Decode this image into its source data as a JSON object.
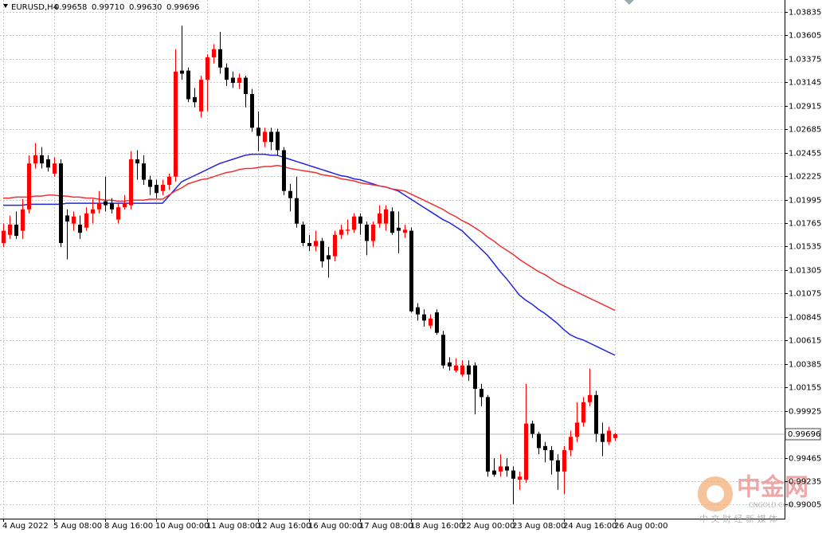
{
  "chart_data": {
    "type": "candlestick",
    "title": "EURUSD,H4",
    "header_values": [
      "0.99658",
      "0.99710",
      "0.99630",
      "0.99696"
    ],
    "categories": [
      "4 Aug 2022",
      null,
      null,
      null,
      null,
      null,
      null,
      null,
      "5 Aug 08:00",
      null,
      null,
      null,
      null,
      null,
      null,
      null,
      "8 Aug 16:00",
      null,
      null,
      null,
      null,
      null,
      null,
      null,
      "10 Aug 00:00",
      null,
      null,
      null,
      null,
      null,
      null,
      null,
      "11 Aug 08:00",
      null,
      null,
      null,
      null,
      null,
      null,
      null,
      "12 Aug 16:00",
      null,
      null,
      null,
      null,
      null,
      null,
      null,
      "16 Aug 00:00",
      null,
      null,
      null,
      null,
      null,
      null,
      null,
      "17 Aug 08:00",
      null,
      null,
      null,
      null,
      null,
      null,
      null,
      "18 Aug 16:00",
      null,
      null,
      null,
      null,
      null,
      null,
      null,
      "22 Aug 00:00",
      null,
      null,
      null,
      null,
      null,
      null,
      null,
      "23 Aug 08:00",
      null,
      null,
      null,
      null,
      null,
      null,
      null,
      "24 Aug 16:00",
      null,
      null,
      null,
      null,
      null,
      null,
      null,
      "26 Aug 00:00"
    ],
    "open": [
      1.0157,
      1.0165,
      1.0175,
      1.0169,
      1.019,
      1.0235,
      1.0243,
      1.0239,
      1.0225,
      1.0235,
      1.0184,
      1.0176,
      1.0175,
      1.0172,
      1.0186,
      1.019,
      1.0198,
      1.0196,
      1.018,
      1.0192,
      1.0194,
      1.0239,
      1.0235,
      1.0219,
      1.0214,
      1.0208,
      1.0214,
      1.0222,
      1.0326,
      1.0326,
      1.03,
      1.0286,
      1.0317,
      1.0339,
      1.0347,
      1.0329,
      1.0319,
      1.0314,
      1.0319,
      1.0303,
      1.027,
      1.0256,
      1.0266,
      1.0266,
      1.0248,
      1.0208,
      1.0201,
      1.0175,
      1.0157,
      1.0154,
      1.0159,
      1.0145,
      1.0144,
      1.0165,
      1.0169,
      1.017,
      1.0183,
      1.0175,
      1.0159,
      1.0176,
      1.0176,
      1.0188,
      1.0172,
      1.0167,
      1.0169,
      1.0094,
      1.0087,
      1.0076,
      1.0089,
      1.0067,
      1.004,
      1.0032,
      1.0028,
      1.0037,
      1.0037,
      1.0014,
      1.0006,
      0.9934,
      0.9933,
      0.9938,
      0.9934,
      0.9925,
      0.9925,
      0.998,
      0.997,
      0.9958,
      0.9954,
      0.9944,
      0.9933,
      0.9954,
      0.9967,
      0.9981,
      1.0001,
      1.0008,
      0.997,
      0.9962,
      0.99658
    ],
    "high": [
      1.0176,
      1.0184,
      1.0188,
      1.02,
      1.0243,
      1.0255,
      1.0251,
      1.0243,
      1.0241,
      1.0239,
      1.019,
      1.0188,
      1.0184,
      1.0192,
      1.02,
      1.0208,
      1.0222,
      1.0201,
      1.0196,
      1.0204,
      1.0247,
      1.0248,
      1.0243,
      1.0223,
      1.0219,
      1.0219,
      1.0225,
      1.0347,
      1.037,
      1.0329,
      1.0309,
      1.0321,
      1.0342,
      1.0352,
      1.0364,
      1.0333,
      1.0325,
      1.0323,
      1.0321,
      1.0308,
      1.0286,
      1.027,
      1.027,
      1.0269,
      1.0251,
      1.0215,
      1.0222,
      1.0178,
      1.0165,
      1.0169,
      1.0162,
      1.0153,
      1.0169,
      1.0175,
      1.018,
      1.0186,
      1.0186,
      1.0178,
      1.0178,
      1.0194,
      1.0194,
      1.0192,
      1.0188,
      1.0175,
      1.0172,
      1.0098,
      1.0092,
      1.0087,
      1.0092,
      1.0071,
      1.0045,
      1.0044,
      1.0042,
      1.0042,
      1.004,
      1.0019,
      1.0008,
      0.9946,
      0.995,
      0.9946,
      0.9938,
      0.9933,
      1.0019,
      0.9983,
      0.9972,
      0.9962,
      0.9958,
      0.995,
      0.9958,
      0.9973,
      1.0001,
      1.0006,
      1.0034,
      1.0012,
      0.9981,
      0.9977,
      0.9971
    ],
    "low": [
      1.0153,
      1.0161,
      1.0161,
      1.0161,
      1.0186,
      1.023,
      1.023,
      1.0227,
      1.0222,
      1.0153,
      1.0141,
      1.0169,
      1.0161,
      1.0169,
      1.0176,
      1.0186,
      1.0188,
      1.0186,
      1.0176,
      1.019,
      1.019,
      1.0219,
      1.0214,
      1.0204,
      1.0201,
      1.0204,
      1.0209,
      1.0217,
      1.0317,
      1.0295,
      1.029,
      1.028,
      1.0286,
      1.0333,
      1.0323,
      1.0311,
      1.0309,
      1.0308,
      1.029,
      1.0266,
      1.0247,
      1.0251,
      1.0248,
      1.0243,
      1.0204,
      1.0188,
      1.0172,
      1.0154,
      1.0149,
      1.0149,
      1.0133,
      1.0123,
      1.0139,
      1.0161,
      1.0165,
      1.0167,
      1.0165,
      1.0145,
      1.0153,
      1.0172,
      1.0169,
      1.0165,
      1.0147,
      1.0162,
      1.0089,
      1.0081,
      1.0075,
      1.0073,
      1.0067,
      1.0034,
      1.0032,
      1.003,
      1.0026,
      1.0022,
      0.9989,
      0.9997,
      0.9928,
      0.9928,
      0.9928,
      0.9928,
      0.9901,
      0.9915,
      0.9922,
      0.9966,
      0.995,
      0.9942,
      0.993,
      0.9915,
      0.9911,
      0.9948,
      0.9962,
      0.9977,
      0.9997,
      0.9962,
      0.9948,
      0.9959,
      0.9963
    ],
    "close": [
      1.0169,
      1.0175,
      1.0164,
      1.019,
      1.0235,
      1.0243,
      1.0235,
      1.0231,
      1.0235,
      1.0157,
      1.0178,
      1.0183,
      1.0167,
      1.0186,
      1.019,
      1.0196,
      1.0194,
      1.019,
      1.0192,
      1.0196,
      1.0239,
      1.0235,
      1.0219,
      1.0212,
      1.0206,
      1.0214,
      1.0222,
      1.0325,
      1.0323,
      1.0298,
      1.0295,
      1.0317,
      1.0339,
      1.0347,
      1.0329,
      1.0317,
      1.0314,
      1.0319,
      1.0303,
      1.027,
      1.0262,
      1.0266,
      1.0256,
      1.0248,
      1.0208,
      1.0201,
      1.0176,
      1.0157,
      1.0154,
      1.0159,
      1.0139,
      1.0141,
      1.0165,
      1.017,
      1.017,
      1.0183,
      1.0176,
      1.0159,
      1.0175,
      1.0186,
      1.019,
      1.0167,
      1.0169,
      1.017,
      1.009,
      1.0087,
      1.0081,
      1.0083,
      1.0069,
      1.0037,
      1.0036,
      1.0037,
      1.0037,
      1.0028,
      1.0014,
      1.0006,
      0.9933,
      0.993,
      0.9938,
      0.9934,
      0.9926,
      0.9928,
      0.998,
      0.997,
      0.9956,
      0.9954,
      0.9944,
      0.9933,
      0.9954,
      0.9967,
      0.9981,
      1.0001,
      1.0008,
      0.997,
      0.9962,
      0.9973,
      0.99696
    ],
    "up_color": "#ff0000",
    "down_color": "#000000",
    "lines": [
      {
        "color": "#2424e0",
        "values": [
          1.0194,
          1.0194,
          1.0194,
          1.0194,
          1.0195,
          1.0195,
          1.0195,
          1.0195,
          1.0195,
          1.0195,
          1.0196,
          1.0196,
          1.0196,
          1.0196,
          1.0196,
          1.0196,
          1.0196,
          1.0196,
          1.0196,
          1.0196,
          1.0196,
          1.0196,
          1.0196,
          1.0196,
          1.0196,
          1.0196,
          1.0203,
          1.021,
          1.0217,
          1.022,
          1.0223,
          1.0226,
          1.0229,
          1.0232,
          1.0235,
          1.0237,
          1.0239,
          1.0241,
          1.0243,
          1.0244,
          1.0244,
          1.0244,
          1.0243,
          1.0243,
          1.0241,
          1.0239,
          1.0237,
          1.0235,
          1.0233,
          1.0231,
          1.0229,
          1.0227,
          1.0225,
          1.0223,
          1.0222,
          1.022,
          1.0219,
          1.0217,
          1.0215,
          1.0213,
          1.0212,
          1.021,
          1.0208,
          1.0204,
          1.02,
          1.0196,
          1.0192,
          1.0188,
          1.0184,
          1.018,
          1.0177,
          1.0173,
          1.0169,
          1.0163,
          1.0157,
          1.0151,
          1.0145,
          1.0137,
          1.0129,
          1.0122,
          1.0114,
          1.0106,
          1.0101,
          1.0097,
          1.0092,
          1.0088,
          1.0083,
          1.0078,
          1.0072,
          1.0067,
          1.0064,
          1.0062,
          1.0059,
          1.0056,
          1.0053,
          1.005,
          1.0047
        ]
      },
      {
        "color": "#f03030",
        "values": [
          1.0201,
          1.0201,
          1.0202,
          1.0202,
          1.0202,
          1.0203,
          1.0203,
          1.0204,
          1.0204,
          1.0203,
          1.0203,
          1.0202,
          1.0202,
          1.0201,
          1.0201,
          1.02,
          1.0199,
          1.0199,
          1.0198,
          1.0198,
          1.0199,
          1.0199,
          1.0199,
          1.02,
          1.02,
          1.02,
          1.0204,
          1.0208,
          1.0211,
          1.0215,
          1.0217,
          1.0219,
          1.022,
          1.0222,
          1.0224,
          1.0226,
          1.0227,
          1.0229,
          1.023,
          1.023,
          1.0231,
          1.0232,
          1.0232,
          1.0233,
          1.0232,
          1.023,
          1.0229,
          1.0228,
          1.0227,
          1.0226,
          1.0224,
          1.0223,
          1.0222,
          1.022,
          1.0219,
          1.0218,
          1.0216,
          1.0215,
          1.0214,
          1.0213,
          1.0212,
          1.021,
          1.0209,
          1.0208,
          1.0205,
          1.0202,
          1.0199,
          1.0196,
          1.0193,
          1.019,
          1.0186,
          1.0183,
          1.0179,
          1.0176,
          1.0172,
          1.0168,
          1.0163,
          1.0159,
          1.0154,
          1.015,
          1.0146,
          1.0141,
          1.0137,
          1.0133,
          1.0129,
          1.0126,
          1.0122,
          1.0118,
          1.0115,
          1.0112,
          1.0109,
          1.0106,
          1.0103,
          1.01,
          1.0097,
          1.0094,
          1.0091
        ]
      }
    ],
    "current_price": 0.99696,
    "ylim": [
      0.98868,
      1.03952
    ],
    "yticks": [
      1.03835,
      1.03605,
      1.03375,
      1.03145,
      1.02915,
      1.02685,
      1.02455,
      1.02225,
      1.01995,
      1.01765,
      1.01535,
      1.01305,
      1.01075,
      1.00845,
      1.00615,
      1.00385,
      1.00155,
      0.99925,
      0.99465,
      0.99235,
      0.99005
    ],
    "grid": true
  },
  "watermark": {
    "logo": "中金网",
    "site": "CNGOLD.COM",
    "slogan": "中 文 财 经 新 媒 体"
  }
}
